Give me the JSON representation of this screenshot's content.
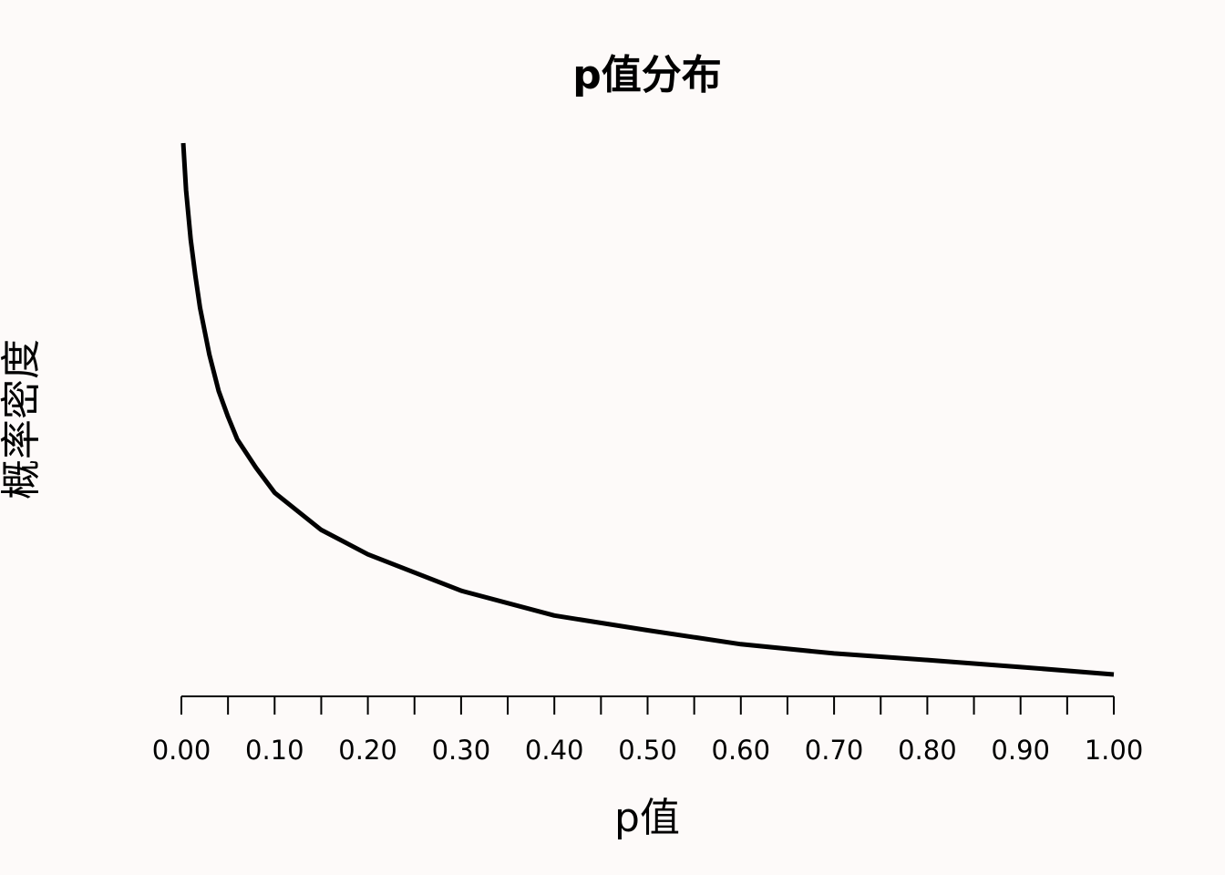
{
  "chart_data": {
    "type": "line",
    "title": "p值分布",
    "xlabel": "p值",
    "ylabel": "概率密度",
    "xlim": [
      0,
      1
    ],
    "x_ticks": [
      "0.00",
      "0.10",
      "0.20",
      "0.30",
      "0.40",
      "0.50",
      "0.60",
      "0.70",
      "0.80",
      "0.90",
      "1.00"
    ],
    "x_minor_step": 0.05,
    "y_axis_shown": false,
    "grid": false,
    "series": [
      {
        "color": "#000000",
        "x": [
          0.002,
          0.005,
          0.01,
          0.015,
          0.02,
          0.03,
          0.04,
          0.05,
          0.06,
          0.08,
          0.1,
          0.15,
          0.2,
          0.3,
          0.4,
          0.5,
          0.6,
          0.7,
          0.8,
          0.9,
          1.0
        ],
        "y": [
          30.0,
          20.0,
          13.0,
          9.5,
          7.2,
          4.8,
          3.5,
          2.8,
          2.3,
          1.8,
          1.45,
          1.05,
          0.85,
          0.62,
          0.5,
          0.44,
          0.39,
          0.36,
          0.34,
          0.32,
          0.3
        ]
      }
    ]
  }
}
